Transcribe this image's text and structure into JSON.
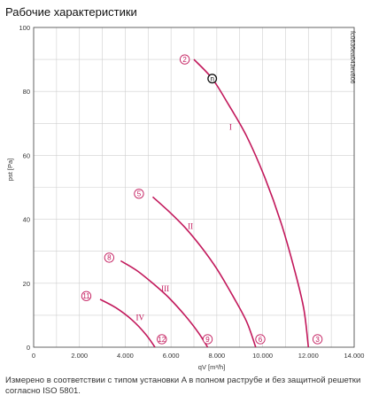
{
  "title": "Рабочие характеристики",
  "footnote": "Измерено в соответствии с типом установки A в полном раструбе и без защитной решетки согласно ISO 5801.",
  "chart_data": {
    "type": "line",
    "xlabel": "qV [m³/h]",
    "ylabel": "pst [Pa]",
    "xlim": [
      0,
      14000
    ],
    "ylim": [
      0,
      100
    ],
    "x_ticks": [
      0,
      2000,
      4000,
      6000,
      8000,
      10000,
      12000,
      14000
    ],
    "x_tick_labels": [
      "0",
      "2.000",
      "4.000",
      "6.000",
      "8.000",
      "10.000",
      "12.000",
      "14.000"
    ],
    "y_ticks": [
      0,
      20,
      40,
      60,
      80,
      100
    ],
    "grid": true,
    "code": "fc0636ea043ev806",
    "colors": {
      "curve": "#c2185b",
      "grid": "#cfcfcf",
      "axis": "#444444"
    },
    "series": [
      {
        "name": "I",
        "label_at": [
          8600,
          68
        ],
        "points": [
          [
            7000,
            90
          ],
          [
            7800,
            84
          ],
          [
            8500,
            76
          ],
          [
            9300,
            66
          ],
          [
            10100,
            53
          ],
          [
            10800,
            39
          ],
          [
            11400,
            24
          ],
          [
            11800,
            12
          ],
          [
            12000,
            0
          ]
        ]
      },
      {
        "name": "II",
        "label_at": [
          6850,
          37
        ],
        "points": [
          [
            5200,
            47
          ],
          [
            5900,
            42.5
          ],
          [
            6600,
            37.5
          ],
          [
            7300,
            31.5
          ],
          [
            8000,
            24.5
          ],
          [
            8700,
            16
          ],
          [
            9300,
            8
          ],
          [
            9700,
            0
          ]
        ]
      },
      {
        "name": "III",
        "label_at": [
          5750,
          17.5
        ],
        "points": [
          [
            3800,
            27
          ],
          [
            4500,
            24
          ],
          [
            5200,
            20
          ],
          [
            5900,
            15.5
          ],
          [
            6600,
            10
          ],
          [
            7200,
            4.5
          ],
          [
            7600,
            0
          ]
        ]
      },
      {
        "name": "IV",
        "label_at": [
          4650,
          8.5
        ],
        "points": [
          [
            2900,
            15
          ],
          [
            3600,
            12.3
          ],
          [
            4300,
            8.5
          ],
          [
            4900,
            4
          ],
          [
            5300,
            0
          ]
        ]
      }
    ],
    "markers": [
      {
        "label": "2",
        "at": [
          6600,
          90
        ],
        "style": "pink"
      },
      {
        "label": "n",
        "at": [
          7800,
          84
        ],
        "style": "operating"
      },
      {
        "label": "5",
        "at": [
          4600,
          48
        ],
        "style": "pink"
      },
      {
        "label": "8",
        "at": [
          3300,
          28
        ],
        "style": "pink"
      },
      {
        "label": "11",
        "at": [
          2300,
          16
        ],
        "style": "pink"
      },
      {
        "label": "12",
        "at": [
          5600,
          2.5
        ],
        "style": "pink"
      },
      {
        "label": "9",
        "at": [
          7600,
          2.5
        ],
        "style": "pink"
      },
      {
        "label": "6",
        "at": [
          9900,
          2.5
        ],
        "style": "pink"
      },
      {
        "label": "3",
        "at": [
          12400,
          2.5
        ],
        "style": "pink"
      }
    ]
  }
}
